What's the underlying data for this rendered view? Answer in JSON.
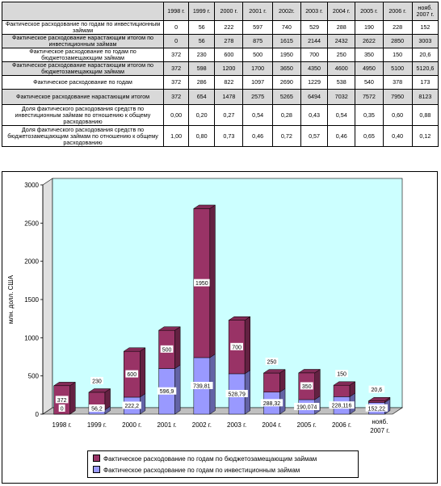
{
  "table": {
    "headers": [
      "1998 г.",
      "1999 г.",
      "2000 г.",
      "2001 г.",
      "2002г.",
      "2003 г.",
      "2004 г.",
      "2005 г.",
      "2006 г.",
      "нояб. 2007 г."
    ],
    "rows": [
      {
        "label": "Фактическое расходование по годам по инвестиционным займам",
        "values": [
          "0",
          "56",
          "222",
          "597",
          "740",
          "529",
          "288",
          "190",
          "228",
          "152"
        ],
        "shade": false
      },
      {
        "label": "Фактическое расходование нарастающим итогом по инвестиционным займам",
        "values": [
          "0",
          "56",
          "278",
          "875",
          "1615",
          "2144",
          "2432",
          "2622",
          "2850",
          "3003"
        ],
        "shade": true
      },
      {
        "label": "Фактическое расходование по годам по бюджетозамещающим займам",
        "values": [
          "372",
          "230",
          "600",
          "500",
          "1950",
          "700",
          "250",
          "350",
          "150",
          "20,6"
        ],
        "shade": false
      },
      {
        "label": "Фактическое расходование нарастающим итогом по бюджетозамещающим займам",
        "values": [
          "372",
          "598",
          "1200",
          "1700",
          "3650",
          "4350",
          "4600",
          "4950",
          "5100",
          "5120,6"
        ],
        "shade": true
      },
      {
        "label": "Фактическое расходование по годам",
        "values": [
          "372",
          "286",
          "822",
          "1097",
          "2690",
          "1229",
          "538",
          "540",
          "378",
          "173"
        ],
        "shade": false
      },
      {
        "label": "Фактическое расходование нарастающим итогом",
        "values": [
          "372",
          "654",
          "1478",
          "2575",
          "5265",
          "6494",
          "7032",
          "7572",
          "7950",
          "8123"
        ],
        "shade": true
      },
      {
        "label": "Доля фактического расходования средств по инвестиционным займам по отношению к общему расходованию",
        "values": [
          "0,00",
          "0,20",
          "0,27",
          "0,54",
          "0,28",
          "0,43",
          "0,54",
          "0,35",
          "0,60",
          "0,88"
        ],
        "shade": false
      },
      {
        "label": "Доля фактического расходования средств по бюджетозамещающим займам по отношению к общему расходованию",
        "values": [
          "1,00",
          "0,80",
          "0,73",
          "0,46",
          "0,72",
          "0,57",
          "0,46",
          "0,65",
          "0,40",
          "0,12"
        ],
        "shade": false
      }
    ]
  },
  "chart_data": {
    "type": "bar",
    "stacked": true,
    "categories": [
      "1998 г.",
      "1999 г.",
      "2000 г.",
      "2001 г.",
      "2002 г.",
      "2003 г.",
      "2004 г.",
      "2005 г.",
      "2006 г.",
      "нояб. 2007 г."
    ],
    "series": [
      {
        "name": "Фактическое расходование по годам по инвестиционным займам",
        "values": [
          0,
          56.2,
          222.2,
          596.9,
          739.81,
          528.79,
          288.32,
          190.074,
          228.116,
          152.22
        ],
        "labels": [
          "0",
          "56,2",
          "222,2",
          "596,9",
          "739,81",
          "528,79",
          "288,32",
          "190,074",
          "228,116",
          "152,22"
        ],
        "color": "#9999ff"
      },
      {
        "name": "Фактическое расходование по годам по бюджетозамещающим займам",
        "values": [
          372,
          230,
          600,
          500,
          1950,
          700,
          250,
          350,
          150,
          20.6
        ],
        "labels": [
          "372",
          "230",
          "600",
          "500",
          "1950",
          "700",
          "250",
          "350",
          "150",
          "20,6"
        ],
        "color": "#993366"
      }
    ],
    "ylabel": "млн. долл. США",
    "ylim": [
      0,
      3000
    ],
    "yticks": [
      "0",
      "500",
      "1000",
      "1500",
      "2000",
      "2500",
      "3000"
    ],
    "ytick_values": [
      0,
      500,
      1000,
      1500,
      2000,
      2500,
      3000
    ],
    "grid": false,
    "wall_color": "#ccffff",
    "legend_placement": "bottom"
  }
}
